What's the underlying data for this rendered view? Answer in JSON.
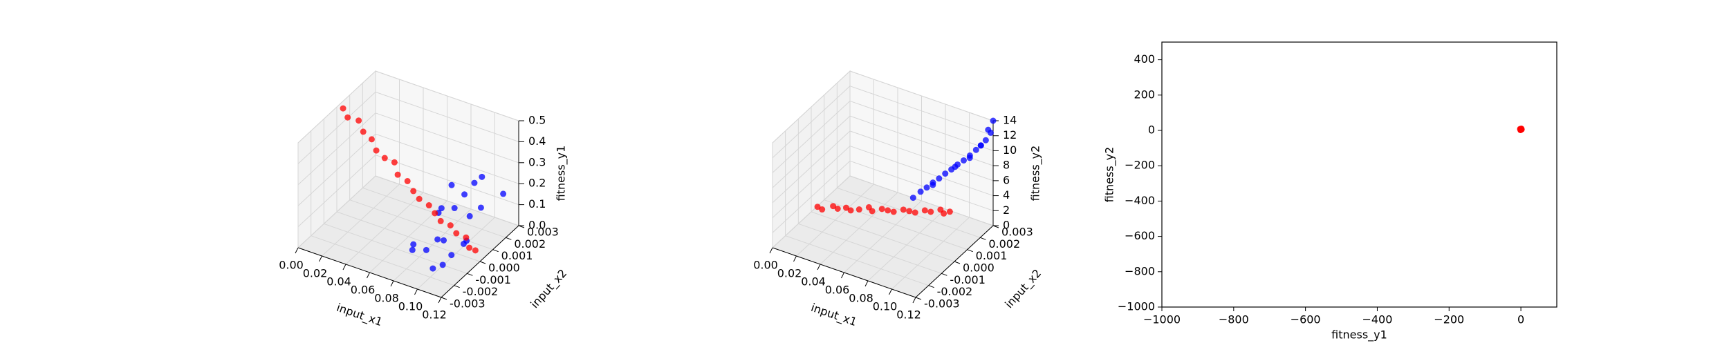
{
  "chart_data": [
    {
      "type": "scatter3d",
      "xlabel": "input_x1",
      "ylabel": "input_x2",
      "zlabel": "fitness_y1",
      "xlim": [
        0,
        0.12
      ],
      "ylim": [
        -0.003,
        0.003
      ],
      "zlim": [
        0,
        0.5
      ],
      "xticks": [
        {
          "value": 0,
          "label": "0.00"
        },
        0.02,
        0.04,
        0.06,
        0.08,
        {
          "value": 0.1,
          "label": "0.10"
        },
        0.12
      ],
      "yticks": [
        -0.003,
        -0.002,
        -0.001,
        {
          "value": 0,
          "label": "0.000"
        },
        0.001,
        0.002,
        0.003
      ],
      "zticks": [
        {
          "value": 0,
          "label": "0.0"
        },
        0.1,
        0.2,
        0.3,
        0.4,
        0.5
      ],
      "series": [
        {
          "color": "#0000ff",
          "x": [
            0.075,
            0.08,
            0.085,
            0.09,
            0.095,
            0.1,
            0.105,
            0.11,
            0.115,
            0.12,
            0.082,
            0.088,
            0.094,
            0.1,
            0.106,
            0.112,
            0.078,
            0.092,
            0.098,
            0.108
          ],
          "y": [
            -0.001,
            0.0015,
            -0.002,
            0.0008,
            -0.0005,
            0.002,
            -0.0015,
            0.001,
            -0.0008,
            0.0018,
            0.0003,
            -0.0012,
            0.0012,
            -0.0018,
            0.0005,
            -0.0003,
            0.0009,
            -0.0007,
            0.0016,
            -0.0011
          ],
          "z": [
            0.05,
            0.2,
            0.1,
            0.15,
            0.08,
            0.25,
            0.04,
            0.18,
            0.12,
            0.22,
            0.14,
            0.06,
            0.2,
            0.03,
            0.16,
            0.1,
            0.12,
            0.09,
            0.24,
            0.07
          ]
        },
        {
          "color": "#ff0000",
          "x": [
            0.002,
            0.008,
            0.014,
            0.02,
            0.026,
            0.032,
            0.038,
            0.044,
            0.05,
            0.056,
            0.062,
            0.068,
            0.074,
            0.08,
            0.086,
            0.092,
            0.098,
            0.104,
            0.11,
            0.114
          ],
          "y": [
            0.0003,
            0.0001,
            0.0004,
            0.0002,
            0.0003,
            0.0001,
            0.0002,
            0.0004,
            0.0001,
            0.0003,
            0.0002,
            0.0001,
            0.0003,
            0.0002,
            0.0001,
            0.0003,
            0.0002,
            0.0004,
            0.0001,
            0.0002
          ],
          "z": [
            0.48,
            0.46,
            0.44,
            0.41,
            0.38,
            0.35,
            0.32,
            0.3,
            0.27,
            0.24,
            0.21,
            0.19,
            0.16,
            0.14,
            0.12,
            0.1,
            0.08,
            0.06,
            0.04,
            0.03
          ]
        }
      ]
    },
    {
      "type": "scatter3d",
      "xlabel": "input_x1",
      "ylabel": "input_x2",
      "zlabel": "fitness_y2",
      "xlim": [
        0,
        0.12
      ],
      "ylim": [
        -0.003,
        0.003
      ],
      "zlim": [
        0,
        14
      ],
      "xticks": [
        {
          "value": 0,
          "label": "0.00"
        },
        0.02,
        0.04,
        0.06,
        0.08,
        {
          "value": 0.1,
          "label": "0.10"
        },
        0.12
      ],
      "yticks": [
        -0.003,
        -0.002,
        -0.001,
        {
          "value": 0,
          "label": "0.000"
        },
        0.001,
        0.002,
        0.003
      ],
      "zticks": [
        0,
        2,
        4,
        6,
        8,
        10,
        12,
        14
      ],
      "series": [
        {
          "color": "#0000ff",
          "x": [
            0.08,
            0.083,
            0.086,
            0.089,
            0.092,
            0.095,
            0.098,
            0.101,
            0.104,
            0.107,
            0.11,
            0.113,
            0.116,
            0.119,
            0.12,
            0.09,
            0.1,
            0.108,
            0.114,
            0.118
          ],
          "y": [
            0.0005,
            0.0008,
            0.001,
            0.0012,
            0.0014,
            0.0016,
            0.0018,
            0.002,
            0.0022,
            0.0024,
            0.0026,
            0.0027,
            0.0028,
            0.0029,
            0.003,
            0.0011,
            0.0019,
            0.0023,
            0.0026,
            0.0028
          ],
          "z": [
            5.5,
            6,
            6.4,
            6.9,
            7.3,
            7.8,
            8.2,
            8.7,
            9.1,
            9.6,
            10.2,
            10.8,
            11.5,
            12.5,
            14,
            6.8,
            8.5,
            9.5,
            11,
            13
          ]
        },
        {
          "color": "#ff0000",
          "x": [
            0.002,
            0.008,
            0.014,
            0.02,
            0.026,
            0.032,
            0.038,
            0.044,
            0.05,
            0.056,
            0.062,
            0.068,
            0.074,
            0.08,
            0.086,
            0.092,
            0.098,
            0.104,
            0.11,
            0.114
          ],
          "y": [
            0.0003,
            0.0001,
            0.0004,
            0.0002,
            0.0003,
            0.0001,
            0.0002,
            0.0004,
            0.0001,
            0.0003,
            0.0002,
            0.0001,
            0.0003,
            0.0002,
            0.0001,
            0.0003,
            0.0002,
            0.0004,
            0.0001,
            0.0002
          ],
          "z": [
            0.3,
            0.6,
            0.9,
            1.2,
            1.5,
            1.8,
            2.1,
            2.4,
            2.7,
            3,
            3.3,
            3.6,
            3.9,
            4.2,
            4.5,
            4.8,
            5.1,
            5.4,
            5.7,
            6
          ]
        }
      ]
    },
    {
      "type": "scatter",
      "xlabel": "fitness_y1",
      "ylabel": "fitness_y2",
      "xlim": [
        -1000,
        100
      ],
      "ylim": [
        -1000,
        500
      ],
      "xticks": [
        {
          "value": -1000,
          "label": "−1000"
        },
        {
          "value": -800,
          "label": "−800"
        },
        {
          "value": -600,
          "label": "−600"
        },
        {
          "value": -400,
          "label": "−400"
        },
        {
          "value": -200,
          "label": "−200"
        },
        0
      ],
      "yticks": [
        {
          "value": -1000,
          "label": "−1000"
        },
        {
          "value": -800,
          "label": "−800"
        },
        {
          "value": -600,
          "label": "−600"
        },
        {
          "value": -400,
          "label": "−400"
        },
        {
          "value": -200,
          "label": "−200"
        },
        0,
        200,
        400
      ],
      "series": [
        {
          "color": "#ff0000",
          "x": [
            0,
            -2,
            1,
            -1,
            2
          ],
          "y": [
            5,
            8,
            10,
            2,
            6
          ]
        }
      ]
    }
  ]
}
